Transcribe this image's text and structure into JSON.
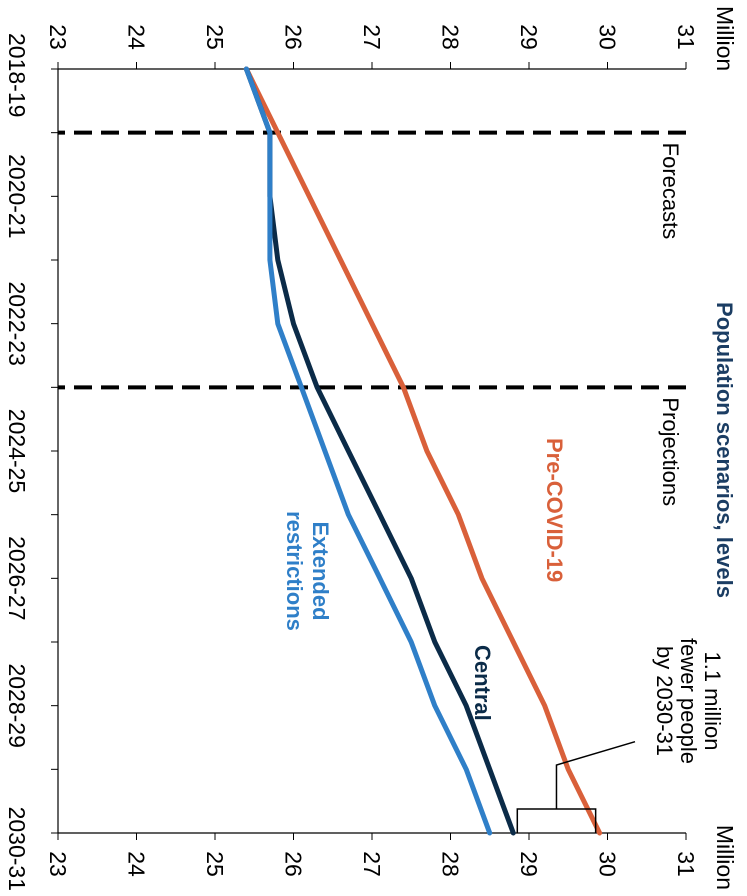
{
  "chart_data": {
    "type": "line",
    "title": "Population scenarios, levels",
    "unit_left": "Million",
    "unit_right": "Million",
    "x": [
      "2018-19",
      "2019-20",
      "2020-21",
      "2021-22",
      "2022-23",
      "2023-24",
      "2024-25",
      "2025-26",
      "2026-27",
      "2027-28",
      "2028-29",
      "2029-30",
      "2030-31"
    ],
    "x_tick_labels": [
      "2018-19",
      "2020-21",
      "2022-23",
      "2024-25",
      "2026-27",
      "2028-29",
      "2030-31"
    ],
    "ylim": [
      23,
      31
    ],
    "y_ticks": [
      23,
      24,
      25,
      26,
      27,
      28,
      29,
      30,
      31
    ],
    "series": [
      {
        "name": "Pre-COVID-19",
        "color": "#d9603a",
        "values": [
          25.4,
          25.8,
          26.2,
          26.6,
          27.0,
          27.4,
          27.7,
          28.1,
          28.4,
          28.8,
          29.2,
          29.5,
          29.9
        ]
      },
      {
        "name": "Central",
        "color": "#0b2b48",
        "values": [
          25.4,
          25.7,
          25.7,
          25.8,
          26.0,
          26.3,
          26.7,
          27.1,
          27.5,
          27.8,
          28.2,
          28.5,
          28.8
        ]
      },
      {
        "name": "Extended restrictions",
        "color": "#2f7fc8",
        "values": [
          25.4,
          25.7,
          25.7,
          25.7,
          25.8,
          26.1,
          26.4,
          26.7,
          27.1,
          27.5,
          27.8,
          28.2,
          28.5
        ]
      }
    ],
    "vlines": [
      {
        "x": "2019-20",
        "label": "Forecasts"
      },
      {
        "x": "2023-24",
        "label": "Projections"
      }
    ],
    "gap_annotation": {
      "x": "2030-31",
      "text": [
        "1.1 million",
        "fewer people",
        "by 2030-31"
      ]
    },
    "legend_placement": "inline labels",
    "grid": false
  }
}
